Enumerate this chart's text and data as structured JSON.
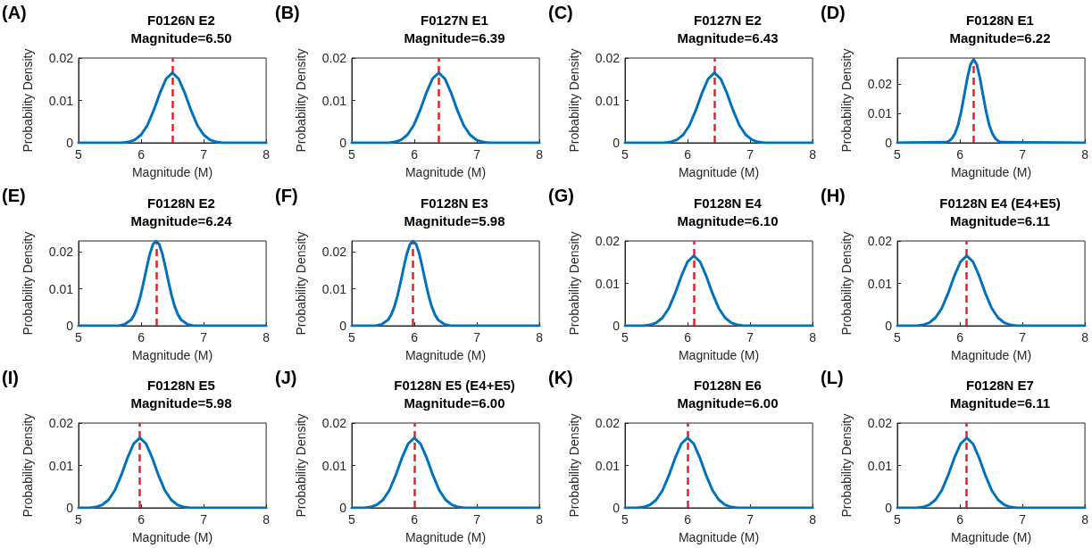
{
  "chart_data": [
    {
      "type": "line",
      "title": "F0126N E2",
      "subtitle": "Magnitude=6.50",
      "annotations": [
        "(A)"
      ],
      "xlabel": "Magnitude (M)",
      "ylabel": "Probability Density",
      "color": "#0072bd",
      "marker": "none",
      "line_style": "solid",
      "grid": false,
      "xlim": [
        5,
        8
      ],
      "xticks": [
        5,
        6,
        7,
        8
      ],
      "ylim": [
        0,
        0.02
      ],
      "yticks": [
        0,
        0.01,
        0.02
      ],
      "ref_lines": [
        {
          "axis": "x",
          "value": 6.5,
          "color": "#e8222b",
          "line_style": "dashed"
        }
      ],
      "x": [
        5,
        5.7,
        5.8,
        5.9,
        6.0,
        6.1,
        6.2,
        6.3,
        6.4,
        6.5,
        6.6,
        6.7,
        6.8,
        6.9,
        7.0,
        7.1,
        7.2,
        7.3,
        8
      ],
      "values": [
        0,
        0,
        0.0002,
        0.0007,
        0.0019,
        0.0041,
        0.0076,
        0.0117,
        0.0151,
        0.0165,
        0.0151,
        0.0117,
        0.0076,
        0.0041,
        0.0019,
        0.0007,
        0.0002,
        0,
        0
      ]
    },
    {
      "type": "line",
      "title": "F0127N E1",
      "subtitle": "Magnitude=6.39",
      "annotations": [
        "(B)"
      ],
      "xlabel": "Magnitude (M)",
      "ylabel": "Probability Density",
      "color": "#0072bd",
      "marker": "none",
      "line_style": "solid",
      "grid": false,
      "xlim": [
        5,
        8
      ],
      "xticks": [
        5,
        6,
        7,
        8
      ],
      "ylim": [
        0,
        0.02
      ],
      "yticks": [
        0,
        0.01,
        0.02
      ],
      "ref_lines": [
        {
          "axis": "x",
          "value": 6.39,
          "color": "#e8222b",
          "line_style": "dashed"
        }
      ],
      "x": [
        5,
        5.59,
        5.69,
        5.79,
        5.89,
        5.99,
        6.09,
        6.19,
        6.29,
        6.39,
        6.49,
        6.59,
        6.69,
        6.79,
        6.89,
        6.99,
        7.09,
        7.19,
        8
      ],
      "values": [
        0,
        0,
        0.0002,
        0.0007,
        0.0019,
        0.0041,
        0.0076,
        0.0117,
        0.0151,
        0.0165,
        0.0151,
        0.0117,
        0.0076,
        0.0041,
        0.0019,
        0.0007,
        0.0002,
        0,
        0
      ]
    },
    {
      "type": "line",
      "title": "F0127N E2",
      "subtitle": "Magnitude=6.43",
      "annotations": [
        "(C)"
      ],
      "xlabel": "Magnitude (M)",
      "ylabel": "Probability Density",
      "color": "#0072bd",
      "marker": "none",
      "line_style": "solid",
      "grid": false,
      "xlim": [
        5,
        8
      ],
      "xticks": [
        5,
        6,
        7,
        8
      ],
      "ylim": [
        0,
        0.02
      ],
      "yticks": [
        0,
        0.01,
        0.02
      ],
      "ref_lines": [
        {
          "axis": "x",
          "value": 6.43,
          "color": "#e8222b",
          "line_style": "dashed"
        }
      ],
      "x": [
        5,
        5.63,
        5.73,
        5.83,
        5.93,
        6.03,
        6.13,
        6.23,
        6.33,
        6.43,
        6.53,
        6.63,
        6.73,
        6.83,
        6.93,
        7.03,
        7.13,
        7.23,
        8
      ],
      "values": [
        0,
        0,
        0.0002,
        0.0007,
        0.0019,
        0.0041,
        0.0076,
        0.0117,
        0.0151,
        0.0165,
        0.0151,
        0.0117,
        0.0076,
        0.0041,
        0.0019,
        0.0007,
        0.0002,
        0,
        0
      ]
    },
    {
      "type": "line",
      "title": "F0128N E1",
      "subtitle": "Magnitude=6.22",
      "annotations": [
        "(D)"
      ],
      "xlabel": "Magnitude (M)",
      "ylabel": "Probability Density",
      "color": "#0072bd",
      "marker": "none",
      "line_style": "solid",
      "grid": false,
      "xlim": [
        5,
        8
      ],
      "xticks": [
        5,
        6,
        7,
        8
      ],
      "ylim": [
        0,
        0.029
      ],
      "yticks": [
        0,
        0.01,
        0.02
      ],
      "ref_lines": [
        {
          "axis": "x",
          "value": 6.22,
          "color": "#e8222b",
          "line_style": "dashed"
        }
      ],
      "x": [
        5,
        5.77,
        5.82,
        5.87,
        5.92,
        5.97,
        6.02,
        6.07,
        6.12,
        6.17,
        6.22,
        6.27,
        6.32,
        6.37,
        6.42,
        6.47,
        6.52,
        6.57,
        6.62,
        6.67,
        8
      ],
      "values": [
        0,
        0.0002,
        0.0005,
        0.0014,
        0.0031,
        0.006,
        0.0106,
        0.0163,
        0.0222,
        0.0268,
        0.0285,
        0.0268,
        0.0222,
        0.0163,
        0.0106,
        0.006,
        0.0031,
        0.0014,
        0.0005,
        0.0002,
        0
      ]
    },
    {
      "type": "line",
      "title": "F0128N E2",
      "subtitle": "Magnitude=6.24",
      "annotations": [
        "(E)"
      ],
      "xlabel": "Magnitude (M)",
      "ylabel": "Probability Density",
      "color": "#0072bd",
      "marker": "none",
      "line_style": "solid",
      "grid": false,
      "xlim": [
        5,
        8
      ],
      "xticks": [
        5,
        6,
        7,
        8
      ],
      "ylim": [
        0,
        0.023
      ],
      "yticks": [
        0,
        0.01,
        0.02
      ],
      "ref_lines": [
        {
          "axis": "x",
          "value": 6.24,
          "color": "#e8222b",
          "line_style": "dashed"
        }
      ],
      "x": [
        5,
        5.64,
        5.74,
        5.84,
        5.89,
        5.94,
        5.99,
        6.04,
        6.09,
        6.14,
        6.19,
        6.24,
        6.29,
        6.34,
        6.39,
        6.44,
        6.49,
        6.54,
        6.59,
        6.64,
        6.74,
        6.84,
        8
      ],
      "values": [
        0,
        0,
        0.0004,
        0.0016,
        0.003,
        0.0051,
        0.0081,
        0.0118,
        0.0158,
        0.0195,
        0.0221,
        0.023,
        0.0221,
        0.0195,
        0.0158,
        0.0118,
        0.0081,
        0.0051,
        0.003,
        0.0016,
        0.0004,
        0,
        0
      ]
    },
    {
      "type": "line",
      "title": "F0128N E3",
      "subtitle": "Magnitude=5.98",
      "annotations": [
        "(F)"
      ],
      "xlabel": "Magnitude (M)",
      "ylabel": "Probability Density",
      "color": "#0072bd",
      "marker": "none",
      "line_style": "solid",
      "grid": false,
      "xlim": [
        5,
        8
      ],
      "xticks": [
        5,
        6,
        7,
        8
      ],
      "ylim": [
        0,
        0.023
      ],
      "yticks": [
        0,
        0.01,
        0.02
      ],
      "ref_lines": [
        {
          "axis": "x",
          "value": 5.98,
          "color": "#e8222b",
          "line_style": "dashed"
        }
      ],
      "x": [
        5,
        5.38,
        5.48,
        5.58,
        5.63,
        5.68,
        5.73,
        5.78,
        5.83,
        5.88,
        5.93,
        5.98,
        6.03,
        6.08,
        6.13,
        6.18,
        6.23,
        6.28,
        6.33,
        6.38,
        6.48,
        6.58,
        8
      ],
      "values": [
        0,
        0,
        0.0004,
        0.0016,
        0.003,
        0.0051,
        0.0081,
        0.0118,
        0.0158,
        0.0195,
        0.0221,
        0.023,
        0.0221,
        0.0195,
        0.0158,
        0.0118,
        0.0081,
        0.0051,
        0.003,
        0.0016,
        0.0004,
        0,
        0
      ]
    },
    {
      "type": "line",
      "title": "F0128N E4",
      "subtitle": "Magnitude=6.10",
      "annotations": [
        "(G)"
      ],
      "xlabel": "Magnitude (M)",
      "ylabel": "Probability Density",
      "color": "#0072bd",
      "marker": "none",
      "line_style": "solid",
      "grid": false,
      "xlim": [
        5,
        8
      ],
      "xticks": [
        5,
        6,
        7,
        8
      ],
      "ylim": [
        0,
        0.02
      ],
      "yticks": [
        0,
        0.01,
        0.02
      ],
      "ref_lines": [
        {
          "axis": "x",
          "value": 6.1,
          "color": "#e8222b",
          "line_style": "dashed"
        }
      ],
      "x": [
        5,
        5.3,
        5.4,
        5.5,
        5.6,
        5.7,
        5.8,
        5.9,
        6.0,
        6.1,
        6.2,
        6.3,
        6.4,
        6.5,
        6.6,
        6.7,
        6.8,
        6.9,
        8
      ],
      "values": [
        0,
        0,
        0.0002,
        0.0007,
        0.0019,
        0.0041,
        0.0076,
        0.0117,
        0.0151,
        0.0165,
        0.0151,
        0.0117,
        0.0076,
        0.0041,
        0.0019,
        0.0007,
        0.0002,
        0,
        0
      ]
    },
    {
      "type": "line",
      "title": "F0128N E4 (E4+E5)",
      "subtitle": "Magnitude=6.11",
      "annotations": [
        "(H)"
      ],
      "xlabel": "Magnitude (M)",
      "ylabel": "Probability Density",
      "color": "#0072bd",
      "marker": "none",
      "line_style": "solid",
      "grid": false,
      "xlim": [
        5,
        8
      ],
      "xticks": [
        5,
        6,
        7,
        8
      ],
      "ylim": [
        0,
        0.02
      ],
      "yticks": [
        0,
        0.01,
        0.02
      ],
      "ref_lines": [
        {
          "axis": "x",
          "value": 6.11,
          "color": "#e8222b",
          "line_style": "dashed"
        }
      ],
      "x": [
        5,
        5.31,
        5.41,
        5.51,
        5.61,
        5.71,
        5.81,
        5.91,
        6.01,
        6.11,
        6.21,
        6.31,
        6.41,
        6.51,
        6.61,
        6.71,
        6.81,
        6.91,
        8
      ],
      "values": [
        0,
        0,
        0.0002,
        0.0007,
        0.0019,
        0.0041,
        0.0076,
        0.0117,
        0.0151,
        0.0165,
        0.0151,
        0.0117,
        0.0076,
        0.0041,
        0.0019,
        0.0007,
        0.0002,
        0,
        0
      ]
    },
    {
      "type": "line",
      "title": "F0128N E5",
      "subtitle": "Magnitude=5.98",
      "annotations": [
        "(I)"
      ],
      "xlabel": "Magnitude (M)",
      "ylabel": "Probability Density",
      "color": "#0072bd",
      "marker": "none",
      "line_style": "solid",
      "grid": false,
      "xlim": [
        5,
        8
      ],
      "xticks": [
        5,
        6,
        7,
        8
      ],
      "ylim": [
        0,
        0.02
      ],
      "yticks": [
        0,
        0.01,
        0.02
      ],
      "ref_lines": [
        {
          "axis": "x",
          "value": 5.98,
          "color": "#e8222b",
          "line_style": "dashed"
        }
      ],
      "x": [
        5,
        5.18,
        5.28,
        5.38,
        5.48,
        5.58,
        5.68,
        5.78,
        5.88,
        5.98,
        6.08,
        6.18,
        6.28,
        6.38,
        6.48,
        6.58,
        6.68,
        6.78,
        8
      ],
      "values": [
        0,
        0,
        0.0002,
        0.0007,
        0.0019,
        0.0041,
        0.0076,
        0.0117,
        0.0151,
        0.0165,
        0.0151,
        0.0117,
        0.0076,
        0.0041,
        0.0019,
        0.0007,
        0.0002,
        0,
        0
      ]
    },
    {
      "type": "line",
      "title": "F0128N E5 (E4+E5)",
      "subtitle": "Magnitude=6.00",
      "annotations": [
        "(J)"
      ],
      "xlabel": "Magnitude (M)",
      "ylabel": "Probability Density",
      "color": "#0072bd",
      "marker": "none",
      "line_style": "solid",
      "grid": false,
      "xlim": [
        5,
        8
      ],
      "xticks": [
        5,
        6,
        7,
        8
      ],
      "ylim": [
        0,
        0.02
      ],
      "yticks": [
        0,
        0.01,
        0.02
      ],
      "ref_lines": [
        {
          "axis": "x",
          "value": 6.0,
          "color": "#e8222b",
          "line_style": "dashed"
        }
      ],
      "x": [
        5,
        5.2,
        5.3,
        5.4,
        5.5,
        5.6,
        5.7,
        5.8,
        5.9,
        6.0,
        6.1,
        6.2,
        6.3,
        6.4,
        6.5,
        6.6,
        6.7,
        6.8,
        8
      ],
      "values": [
        0,
        0,
        0.0002,
        0.0007,
        0.0019,
        0.0041,
        0.0076,
        0.0117,
        0.0151,
        0.0165,
        0.0151,
        0.0117,
        0.0076,
        0.0041,
        0.0019,
        0.0007,
        0.0002,
        0,
        0
      ]
    },
    {
      "type": "line",
      "title": "F0128N E6",
      "subtitle": "Magnitude=6.00",
      "annotations": [
        "(K)"
      ],
      "xlabel": "Magnitude (M)",
      "ylabel": "Probability Density",
      "color": "#0072bd",
      "marker": "none",
      "line_style": "solid",
      "grid": false,
      "xlim": [
        5,
        8
      ],
      "xticks": [
        5,
        6,
        7,
        8
      ],
      "ylim": [
        0,
        0.02
      ],
      "yticks": [
        0,
        0.01,
        0.02
      ],
      "ref_lines": [
        {
          "axis": "x",
          "value": 6.0,
          "color": "#e8222b",
          "line_style": "dashed"
        }
      ],
      "x": [
        5,
        5.2,
        5.3,
        5.4,
        5.5,
        5.6,
        5.7,
        5.8,
        5.9,
        6.0,
        6.1,
        6.2,
        6.3,
        6.4,
        6.5,
        6.6,
        6.7,
        6.8,
        8
      ],
      "values": [
        0,
        0,
        0.0002,
        0.0007,
        0.0019,
        0.0041,
        0.0076,
        0.0117,
        0.0151,
        0.0165,
        0.0151,
        0.0117,
        0.0076,
        0.0041,
        0.0019,
        0.0007,
        0.0002,
        0,
        0
      ]
    },
    {
      "type": "line",
      "title": "F0128N E7",
      "subtitle": "Magnitude=6.11",
      "annotations": [
        "(L)"
      ],
      "xlabel": "Magnitude (M)",
      "ylabel": "Probability Density",
      "color": "#0072bd",
      "marker": "none",
      "line_style": "solid",
      "grid": false,
      "xlim": [
        5,
        8
      ],
      "xticks": [
        5,
        6,
        7,
        8
      ],
      "ylim": [
        0,
        0.02
      ],
      "yticks": [
        0,
        0.01,
        0.02
      ],
      "ref_lines": [
        {
          "axis": "x",
          "value": 6.11,
          "color": "#e8222b",
          "line_style": "dashed"
        }
      ],
      "x": [
        5,
        5.31,
        5.41,
        5.51,
        5.61,
        5.71,
        5.81,
        5.91,
        6.01,
        6.11,
        6.21,
        6.31,
        6.41,
        6.51,
        6.61,
        6.71,
        6.81,
        6.91,
        8
      ],
      "values": [
        0,
        0,
        0.0002,
        0.0007,
        0.0019,
        0.0041,
        0.0076,
        0.0117,
        0.0151,
        0.0165,
        0.0151,
        0.0117,
        0.0076,
        0.0041,
        0.0019,
        0.0007,
        0.0002,
        0,
        0
      ]
    }
  ]
}
